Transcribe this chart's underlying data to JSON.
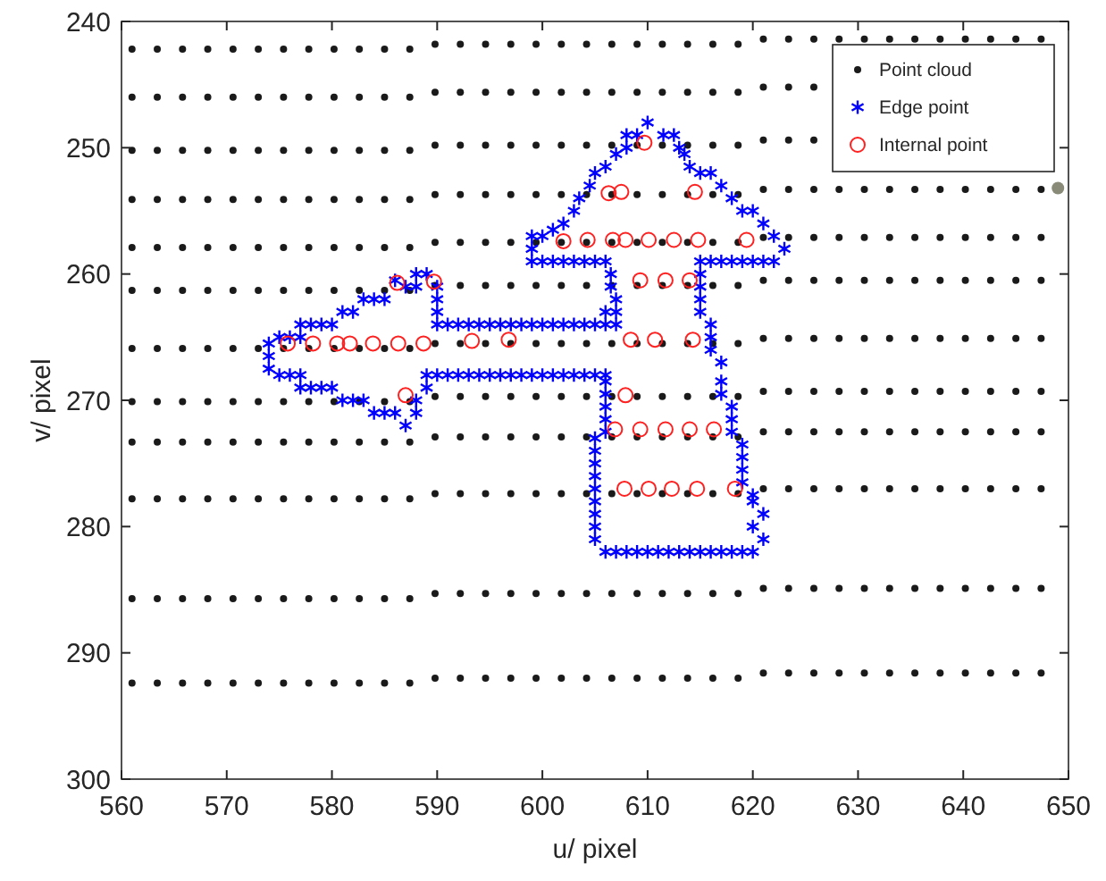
{
  "chart_data": {
    "type": "scatter",
    "xlabel": "u/ pixel",
    "ylabel": "v/ pixel",
    "xlim": [
      560,
      650
    ],
    "ylim": [
      300,
      240
    ],
    "xticks": [
      560,
      570,
      580,
      590,
      600,
      610,
      620,
      630,
      640,
      650
    ],
    "yticks": [
      240,
      250,
      260,
      270,
      280,
      290,
      300
    ],
    "legend": "top right",
    "grid": false,
    "series": [
      {
        "name": "Point cloud",
        "color": "#1a1a1a",
        "marker": "circle",
        "x": [
          561.0,
          563.4,
          565.8,
          568.2,
          570.6,
          573.0,
          575.4,
          577.8,
          580.2,
          582.6,
          585.0,
          587.4,
          589.8,
          592.2,
          594.6,
          597.0,
          599.4,
          601.8,
          604.2,
          606.6,
          609.0,
          611.4,
          613.8,
          616.2,
          618.6,
          621.0,
          623.4,
          625.8,
          628.2,
          630.6,
          633.0,
          635.4,
          637.8,
          640.2,
          642.6,
          645.0,
          647.4,
          561.0,
          563.4,
          565.8,
          568.2,
          570.6,
          573.0,
          575.4,
          577.8,
          580.2,
          582.6,
          585.0,
          587.4,
          589.8,
          592.2,
          594.6,
          597.0,
          599.4,
          601.8,
          604.2,
          606.6,
          609.0,
          611.4,
          613.8,
          616.2,
          618.6,
          621.0,
          623.4,
          625.8,
          561.0,
          563.4,
          565.8,
          568.2,
          570.6,
          573.0,
          575.4,
          577.8,
          580.2,
          582.6,
          585.0,
          587.4,
          589.8,
          592.2,
          594.6,
          597.0,
          599.4,
          601.8,
          604.2,
          606.6,
          609.0,
          611.4,
          613.8,
          616.2,
          618.6,
          621.0,
          623.4,
          625.8,
          561.0,
          563.4,
          565.8,
          568.2,
          570.6,
          573.0,
          575.4,
          577.8,
          580.2,
          582.6,
          585.0,
          587.4,
          589.8,
          592.2,
          594.6,
          597.0,
          599.4,
          601.8,
          604.2,
          606.6,
          609.0,
          611.4,
          613.8,
          616.2,
          618.6,
          621.0,
          623.4,
          625.8,
          628.2,
          630.6,
          633.0,
          635.4,
          637.8,
          640.2,
          642.6,
          645.0,
          647.4,
          561.0,
          563.4,
          565.8,
          568.2,
          570.6,
          573.0,
          575.4,
          577.8,
          580.2,
          582.6,
          585.0,
          587.4,
          589.8,
          592.2,
          594.6,
          597.0,
          599.4,
          601.8,
          604.2,
          606.6,
          609.0,
          611.4,
          613.8,
          616.2,
          618.6,
          621.0,
          623.4,
          625.8,
          628.2,
          630.6,
          633.0,
          635.4,
          637.8,
          640.2,
          642.6,
          645.0,
          647.4,
          561.0,
          563.4,
          565.8,
          568.2,
          570.6,
          573.0,
          575.4,
          577.8,
          580.2,
          582.6,
          585.0,
          587.4,
          589.8,
          592.2,
          594.6,
          597.0,
          599.4,
          601.8,
          604.2,
          606.6,
          609.0,
          611.4,
          613.8,
          616.2,
          618.6,
          621.0,
          623.4,
          625.8,
          628.2,
          630.6,
          633.0,
          635.4,
          637.8,
          640.2,
          642.6,
          645.0,
          647.4,
          561.0,
          563.4,
          565.8,
          568.2,
          570.6,
          573.0,
          575.4,
          577.8,
          580.2,
          582.6,
          585.0,
          587.4,
          589.8,
          592.2,
          594.6,
          597.0,
          599.4,
          601.8,
          604.2,
          606.6,
          609.0,
          611.4,
          613.8,
          616.2,
          618.6,
          621.0,
          623.4,
          625.8,
          628.2,
          630.6,
          633.0,
          635.4,
          637.8,
          640.2,
          642.6,
          645.0,
          647.4,
          561.0,
          563.4,
          565.8,
          568.2,
          570.6,
          573.0,
          575.4,
          577.8,
          580.2,
          582.6,
          585.0,
          587.4,
          589.8,
          592.2,
          594.6,
          597.0,
          599.4,
          601.8,
          604.2,
          606.6,
          609.0,
          611.4,
          613.8,
          616.2,
          618.6,
          621.0,
          623.4,
          625.8,
          628.2,
          630.6,
          633.0,
          635.4,
          637.8,
          640.2,
          642.6,
          645.0,
          647.4,
          561.0,
          563.4,
          565.8,
          568.2,
          570.6,
          573.0,
          575.4,
          577.8,
          580.2,
          582.6,
          585.0,
          587.4,
          589.8,
          592.2,
          594.6,
          597.0,
          599.4,
          601.8,
          604.2,
          606.6,
          609.0,
          611.4,
          613.8,
          616.2,
          618.6,
          621.0,
          623.4,
          625.8,
          628.2,
          630.6,
          633.0,
          635.4,
          637.8,
          640.2,
          642.6,
          645.0,
          647.4,
          561.0,
          563.4,
          565.8,
          568.2,
          570.6,
          573.0,
          575.4,
          577.8,
          580.2,
          582.6,
          585.0,
          587.4,
          589.8,
          592.2,
          594.6,
          597.0,
          599.4,
          601.8,
          604.2,
          606.6,
          609.0,
          611.4,
          613.8,
          616.2,
          618.6,
          621.0,
          623.4,
          625.8,
          628.2,
          630.6,
          633.0,
          635.4,
          637.8,
          640.2,
          642.6,
          645.0,
          647.4,
          561.0,
          563.4,
          565.8,
          568.2,
          570.6,
          573.0,
          575.4,
          577.8,
          580.2,
          582.6,
          585.0,
          587.4,
          589.8,
          592.2,
          594.6,
          597.0,
          599.4,
          601.8,
          604.2,
          606.6,
          609.0,
          611.4,
          613.8,
          616.2,
          618.6,
          621.0,
          623.4,
          625.8,
          628.2,
          630.6,
          633.0,
          635.4,
          637.8,
          640.2,
          642.6,
          645.0,
          647.4,
          561.0,
          563.4,
          565.8,
          568.2,
          570.6,
          573.0,
          575.4,
          577.8,
          580.2,
          582.6,
          585.0,
          587.4,
          589.8,
          592.2,
          594.6,
          597.0,
          599.4,
          601.8,
          604.2,
          606.6,
          609.0,
          611.4,
          613.8,
          616.2,
          618.6,
          621.0,
          623.4,
          625.8,
          628.2,
          630.6,
          633.0,
          635.4,
          637.8,
          640.2,
          642.6,
          645.0,
          647.4
        ],
        "values": [
          242.2,
          242.2,
          242.2,
          242.2,
          242.2,
          242.2,
          242.2,
          242.2,
          242.2,
          242.2,
          242.2,
          242.2,
          241.8,
          241.8,
          241.8,
          241.8,
          241.8,
          241.8,
          241.8,
          241.8,
          241.8,
          241.8,
          241.8,
          241.8,
          241.8,
          241.4,
          241.4,
          241.4,
          241.4,
          241.4,
          241.4,
          241.4,
          241.4,
          241.4,
          241.4,
          241.4,
          241.4,
          246.0,
          246.0,
          246.0,
          246.0,
          246.0,
          246.0,
          246.0,
          246.0,
          246.0,
          246.0,
          246.0,
          246.0,
          245.6,
          245.6,
          245.6,
          245.6,
          245.6,
          245.6,
          245.6,
          245.6,
          245.6,
          245.6,
          245.6,
          245.6,
          245.6,
          245.2,
          245.2,
          245.2,
          250.2,
          250.2,
          250.2,
          250.2,
          250.2,
          250.2,
          250.2,
          250.2,
          250.2,
          250.2,
          250.2,
          250.2,
          249.8,
          249.8,
          249.8,
          249.8,
          249.8,
          249.8,
          249.8,
          249.8,
          249.8,
          249.8,
          249.8,
          249.8,
          249.8,
          249.4,
          249.4,
          249.4,
          254.1,
          254.1,
          254.1,
          254.1,
          254.1,
          254.1,
          254.1,
          254.1,
          254.1,
          254.1,
          254.1,
          254.1,
          253.7,
          253.7,
          253.7,
          253.7,
          253.7,
          253.7,
          253.7,
          253.7,
          253.7,
          253.7,
          253.7,
          253.7,
          253.7,
          253.3,
          253.3,
          253.3,
          253.3,
          253.3,
          253.3,
          253.3,
          253.3,
          253.3,
          253.3,
          253.3,
          253.3,
          257.9,
          257.9,
          257.9,
          257.9,
          257.9,
          257.9,
          257.9,
          257.9,
          257.9,
          257.9,
          257.9,
          257.9,
          257.5,
          257.5,
          257.5,
          257.5,
          257.5,
          257.5,
          257.5,
          257.5,
          257.5,
          257.5,
          257.5,
          257.5,
          257.5,
          257.1,
          257.1,
          257.1,
          257.1,
          257.1,
          257.1,
          257.1,
          257.1,
          257.1,
          257.1,
          257.1,
          257.1,
          261.3,
          261.3,
          261.3,
          261.3,
          261.3,
          261.3,
          261.3,
          261.3,
          261.3,
          261.3,
          261.3,
          261.3,
          260.9,
          260.9,
          260.9,
          260.9,
          260.9,
          260.9,
          260.9,
          260.9,
          260.9,
          260.9,
          260.9,
          260.9,
          260.9,
          260.5,
          260.5,
          260.5,
          260.5,
          260.5,
          260.5,
          260.5,
          260.5,
          260.5,
          260.5,
          260.5,
          260.5,
          265.9,
          265.9,
          265.9,
          265.9,
          265.9,
          265.9,
          265.9,
          265.9,
          265.9,
          265.9,
          265.9,
          265.9,
          265.5,
          265.5,
          265.5,
          265.5,
          265.5,
          265.5,
          265.5,
          265.5,
          265.5,
          265.5,
          265.5,
          265.5,
          265.5,
          265.1,
          265.1,
          265.1,
          265.1,
          265.1,
          265.1,
          265.1,
          265.1,
          265.1,
          265.1,
          265.1,
          265.1,
          270.1,
          270.1,
          270.1,
          270.1,
          270.1,
          270.1,
          270.1,
          270.1,
          270.1,
          270.1,
          270.1,
          270.1,
          269.7,
          269.7,
          269.7,
          269.7,
          269.7,
          269.7,
          269.7,
          269.7,
          269.7,
          269.7,
          269.7,
          269.7,
          269.7,
          269.3,
          269.3,
          269.3,
          269.3,
          269.3,
          269.3,
          269.3,
          269.3,
          269.3,
          269.3,
          269.3,
          269.3,
          273.3,
          273.3,
          273.3,
          273.3,
          273.3,
          273.3,
          273.3,
          273.3,
          273.3,
          273.3,
          273.3,
          273.3,
          272.9,
          272.9,
          272.9,
          272.9,
          272.9,
          272.9,
          272.9,
          272.9,
          272.9,
          272.9,
          272.9,
          272.9,
          272.9,
          272.5,
          272.5,
          272.5,
          272.5,
          272.5,
          272.5,
          272.5,
          272.5,
          272.5,
          272.5,
          272.5,
          272.5,
          277.8,
          277.8,
          277.8,
          277.8,
          277.8,
          277.8,
          277.8,
          277.8,
          277.8,
          277.8,
          277.8,
          277.8,
          277.4,
          277.4,
          277.4,
          277.4,
          277.4,
          277.4,
          277.4,
          277.4,
          277.4,
          277.4,
          277.4,
          277.4,
          277.4,
          277.0,
          277.0,
          277.0,
          277.0,
          277.0,
          277.0,
          277.0,
          277.0,
          277.0,
          277.0,
          277.0,
          277.0,
          285.7,
          285.7,
          285.7,
          285.7,
          285.7,
          285.7,
          285.7,
          285.7,
          285.7,
          285.7,
          285.7,
          285.7,
          285.3,
          285.3,
          285.3,
          285.3,
          285.3,
          285.3,
          285.3,
          285.3,
          285.3,
          285.3,
          285.3,
          285.3,
          285.3,
          284.9,
          284.9,
          284.9,
          284.9,
          284.9,
          284.9,
          284.9,
          284.9,
          284.9,
          284.9,
          284.9,
          284.9,
          292.4,
          292.4,
          292.4,
          292.4,
          292.4,
          292.4,
          292.4,
          292.4,
          292.4,
          292.4,
          292.4,
          292.4,
          292.0,
          292.0,
          292.0,
          292.0,
          292.0,
          292.0,
          292.0,
          292.0,
          292.0,
          292.0,
          292.0,
          292.0,
          292.0,
          291.6,
          291.6,
          291.6,
          291.6,
          291.6,
          291.6,
          291.6,
          291.6,
          291.6,
          291.6,
          291.6,
          291.6
        ]
      },
      {
        "name": "Edge point",
        "color": "#0000ff",
        "marker": "cross",
        "x": [
          610,
          609,
          608,
          608,
          607,
          606,
          605,
          604.5,
          603.5,
          603,
          602,
          601,
          600,
          599,
          599,
          599,
          600,
          601,
          602,
          603,
          604,
          605,
          606,
          606.5,
          606.5,
          607,
          607,
          606,
          607,
          606,
          605,
          604,
          603,
          602,
          601,
          600,
          599,
          598,
          597,
          596,
          595,
          594,
          593,
          592,
          591,
          590,
          590,
          590,
          590,
          589,
          588,
          588,
          587,
          586,
          585,
          584,
          583,
          582,
          581,
          580,
          579,
          578,
          577,
          577,
          576,
          575,
          574,
          574,
          574,
          575,
          576,
          577,
          577,
          578,
          579,
          580,
          581,
          582,
          583,
          584,
          585,
          586,
          587,
          588,
          588,
          589,
          589,
          590,
          591,
          592,
          593,
          594,
          595,
          596,
          597,
          598,
          599,
          600,
          601,
          602,
          603,
          604,
          605,
          606,
          606,
          606,
          606,
          606,
          606,
          605,
          605,
          605,
          605,
          605,
          605,
          605,
          605,
          605,
          606,
          607,
          608,
          609,
          610,
          611,
          612,
          613,
          614,
          615,
          616,
          617,
          618,
          619,
          620,
          621,
          620,
          621,
          620,
          620,
          619,
          619,
          619,
          619,
          618,
          618,
          618,
          617,
          617,
          617,
          616,
          616,
          616,
          615,
          615,
          615,
          615,
          615,
          616,
          617,
          618,
          619,
          620,
          621,
          622,
          623,
          622,
          621,
          620,
          619,
          618,
          617,
          616,
          615,
          614,
          613.5,
          613,
          612.5,
          611.5
        ],
        "values": [
          248,
          249,
          249,
          250,
          250.5,
          251.5,
          252,
          253,
          254,
          255,
          256,
          256.5,
          257,
          257,
          258,
          259,
          259,
          259,
          259,
          259,
          259,
          259,
          259,
          260,
          261,
          262,
          263,
          263,
          264,
          264,
          264,
          264,
          264,
          264,
          264,
          264,
          264,
          264,
          264,
          264,
          264,
          264,
          264,
          264,
          264,
          264,
          263,
          262,
          261,
          260,
          260,
          261,
          261,
          260.5,
          262,
          262,
          262,
          263,
          263,
          264,
          264,
          264,
          264,
          265,
          265,
          265,
          265.5,
          266.5,
          267.5,
          268,
          268,
          268,
          269,
          269,
          269,
          269,
          270,
          270,
          270,
          271,
          271,
          271,
          272,
          271,
          270,
          269,
          268,
          268,
          268,
          268,
          268,
          268,
          268,
          268,
          268,
          268,
          268,
          268,
          268,
          268,
          268,
          268,
          268,
          268,
          268.5,
          269.5,
          270.5,
          271.5,
          272.5,
          273,
          274,
          275,
          276,
          277,
          278,
          279,
          280,
          281,
          282,
          282,
          282,
          282,
          282,
          282,
          282,
          282,
          282,
          282,
          282,
          282,
          282,
          282,
          282,
          281,
          280,
          279,
          278,
          277.5,
          276.5,
          275.5,
          274.5,
          273.5,
          272.5,
          271.5,
          270.5,
          269.5,
          268.5,
          267,
          266,
          265,
          264,
          263,
          262,
          261,
          260,
          259,
          259,
          259,
          259,
          259,
          259,
          259,
          259,
          258,
          257,
          256,
          255,
          255,
          254,
          253,
          252,
          252,
          251.5,
          250.5,
          250,
          249,
          249
        ]
      },
      {
        "name": "Internal point",
        "color": "#ff2020",
        "marker": "circle",
        "x": [
          609.7,
          606.3,
          607.5,
          614.5,
          602.0,
          604.3,
          606.7,
          607.9,
          610.1,
          612.5,
          614.8,
          619.4,
          609.3,
          611.7,
          614.0,
          608.4,
          610.7,
          614.3,
          575.8,
          578.2,
          580.5,
          581.7,
          583.9,
          586.3,
          588.7,
          593.3,
          596.8,
          586.2,
          589.7,
          587.0,
          607.9,
          606.9,
          609.3,
          611.7,
          614.0,
          616.3,
          607.8,
          610.1,
          612.3,
          614.7,
          618.3
        ],
        "values": [
          249.6,
          253.6,
          253.5,
          253.5,
          257.4,
          257.3,
          257.3,
          257.3,
          257.3,
          257.3,
          257.3,
          257.3,
          260.5,
          260.5,
          260.5,
          265.2,
          265.2,
          265.2,
          265.5,
          265.5,
          265.5,
          265.5,
          265.5,
          265.5,
          265.5,
          265.3,
          265.2,
          260.7,
          260.6,
          269.6,
          269.6,
          272.3,
          272.3,
          272.3,
          272.3,
          272.3,
          277.0,
          277.0,
          277.0,
          277.0,
          277.0
        ]
      },
      {
        "color": "#8a8a78",
        "marker": "circle",
        "x": [
          649
        ],
        "values": [
          253.2
        ]
      }
    ]
  }
}
